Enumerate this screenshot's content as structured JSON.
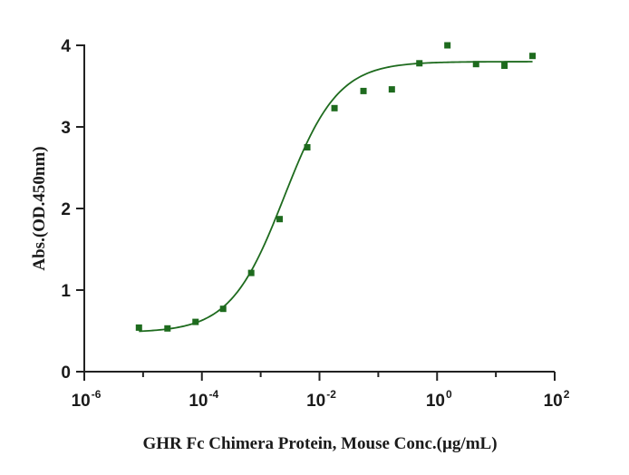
{
  "chart_data": {
    "type": "scatter",
    "title": "",
    "xlabel": "GHR Fc Chimera Protein, Mouse Conc.(µg/mL)",
    "ylabel": "Abs.(OD.450nm)",
    "xscale": "log",
    "xlim": [
      1e-06,
      100
    ],
    "ylim": [
      0,
      4
    ],
    "x_ticks": [
      {
        "base": "10",
        "exp": "-6",
        "value": 1e-06
      },
      {
        "base": "10",
        "exp": "-4",
        "value": 0.0001
      },
      {
        "base": "10",
        "exp": "-2",
        "value": 0.01
      },
      {
        "base": "10",
        "exp": "0",
        "value": 1
      },
      {
        "base": "10",
        "exp": "2",
        "value": 100
      }
    ],
    "y_ticks": [
      "0",
      "1",
      "2",
      "3",
      "4"
    ],
    "grid": false,
    "legend": "none",
    "marker_color": "#1e6b1e",
    "line_color": "#1e6b1e",
    "series": [
      {
        "x": [
          8.5e-06,
          2.6e-05,
          7.8e-05,
          0.00023,
          0.00069,
          0.0021,
          0.0062,
          0.018,
          0.056,
          0.17,
          0.5,
          1.5,
          4.6,
          14,
          42
        ],
        "y": [
          0.54,
          0.53,
          0.61,
          0.77,
          1.21,
          1.87,
          2.75,
          3.23,
          3.44,
          3.46,
          3.78,
          4.0,
          3.77,
          3.75,
          3.87
        ]
      }
    ],
    "fit_curve": {
      "model": "4PL",
      "bottom": 0.48,
      "top": 3.8,
      "ec50": 0.0025,
      "hill": 0.95,
      "x_range": [
        8.5e-06,
        42
      ]
    }
  }
}
